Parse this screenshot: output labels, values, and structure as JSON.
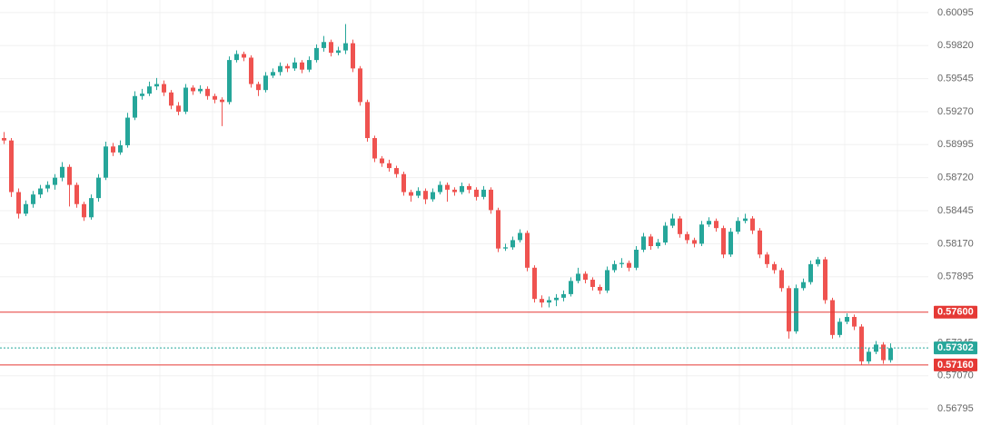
{
  "chart_data": {
    "type": "candlestick",
    "up_color": "#26a69a",
    "down_color": "#ef5350",
    "ylim": [
      0.5666,
      0.602
    ],
    "yticks": [
      0.60095,
      {
        "value": 0.5982,
        "label": "0.59820"
      },
      0.59545,
      {
        "value": 0.5927,
        "label": "0.59270"
      },
      0.58995,
      {
        "value": 0.5872,
        "label": "0.58720"
      },
      0.58445,
      {
        "value": 0.5817,
        "label": "0.58170"
      },
      0.57895,
      0.57345,
      {
        "value": 0.5707,
        "label": "0.57070"
      },
      0.56795
    ],
    "grid": true,
    "levels": [
      {
        "value": 0.576,
        "label": "0.57600",
        "color": "#e53935",
        "dashed": false
      },
      {
        "value": 0.5716,
        "label": "0.57160",
        "color": "#e53935",
        "dashed": false
      },
      {
        "value": 0.57302,
        "color": "#26a69a",
        "dashed": true
      }
    ],
    "candles": [
      [
        0.5905,
        0.591,
        0.59,
        0.5903
      ],
      [
        0.5903,
        0.5905,
        0.5856,
        0.586
      ],
      [
        0.586,
        0.5863,
        0.5838,
        0.5842
      ],
      [
        0.5842,
        0.5853,
        0.584,
        0.585
      ],
      [
        0.585,
        0.5861,
        0.5847,
        0.5858
      ],
      [
        0.5858,
        0.5866,
        0.5855,
        0.5863
      ],
      [
        0.5863,
        0.5869,
        0.586,
        0.5866
      ],
      [
        0.5866,
        0.5875,
        0.5862,
        0.5872
      ],
      [
        0.5872,
        0.5885,
        0.5869,
        0.5881
      ],
      [
        0.5881,
        0.5883,
        0.5848,
        0.5866
      ],
      [
        0.5866,
        0.5868,
        0.5847,
        0.585
      ],
      [
        0.585,
        0.5852,
        0.5836,
        0.5839
      ],
      [
        0.5839,
        0.5858,
        0.5837,
        0.5855
      ],
      [
        0.5855,
        0.5875,
        0.5852,
        0.5872
      ],
      [
        0.5872,
        0.5902,
        0.587,
        0.5898
      ],
      [
        0.5898,
        0.5901,
        0.589,
        0.5893
      ],
      [
        0.5893,
        0.5903,
        0.5891,
        0.5899
      ],
      [
        0.5899,
        0.5926,
        0.5897,
        0.5922
      ],
      [
        0.5922,
        0.5944,
        0.592,
        0.594
      ],
      [
        0.594,
        0.5946,
        0.5937,
        0.5942
      ],
      [
        0.5942,
        0.5952,
        0.594,
        0.5948
      ],
      [
        0.5948,
        0.5955,
        0.5945,
        0.595
      ],
      [
        0.595,
        0.5953,
        0.594,
        0.5943
      ],
      [
        0.5943,
        0.5945,
        0.5929,
        0.5932
      ],
      [
        0.5932,
        0.5935,
        0.5924,
        0.5927
      ],
      [
        0.5927,
        0.595,
        0.5925,
        0.5947
      ],
      [
        0.5947,
        0.5949,
        0.5941,
        0.5944
      ],
      [
        0.5944,
        0.5949,
        0.5942,
        0.5946
      ],
      [
        0.5946,
        0.5948,
        0.5937,
        0.594
      ],
      [
        0.594,
        0.5942,
        0.5934,
        0.5937
      ],
      [
        0.5937,
        0.5939,
        0.5915,
        0.5935
      ],
      [
        0.5935,
        0.5973,
        0.5933,
        0.597
      ],
      [
        0.597,
        0.5978,
        0.5968,
        0.5975
      ],
      [
        0.5975,
        0.5977,
        0.5969,
        0.5972
      ],
      [
        0.5972,
        0.5974,
        0.5947,
        0.595
      ],
      [
        0.595,
        0.5952,
        0.594,
        0.5945
      ],
      [
        0.5945,
        0.596,
        0.5943,
        0.5957
      ],
      [
        0.5957,
        0.5963,
        0.5955,
        0.596
      ],
      [
        0.596,
        0.5968,
        0.5957,
        0.5965
      ],
      [
        0.5965,
        0.5967,
        0.596,
        0.5963
      ],
      [
        0.5963,
        0.5972,
        0.5961,
        0.5968
      ],
      [
        0.5968,
        0.597,
        0.5959,
        0.5962
      ],
      [
        0.5962,
        0.5973,
        0.596,
        0.597
      ],
      [
        0.597,
        0.5983,
        0.5968,
        0.598
      ],
      [
        0.598,
        0.599,
        0.5977,
        0.5985
      ],
      [
        0.5985,
        0.5987,
        0.5973,
        0.5976
      ],
      [
        0.5976,
        0.5981,
        0.5974,
        0.5978
      ],
      [
        0.5978,
        0.6,
        0.5975,
        0.5984
      ],
      [
        0.5984,
        0.5987,
        0.596,
        0.5963
      ],
      [
        0.5963,
        0.5965,
        0.5932,
        0.5935
      ],
      [
        0.5935,
        0.5937,
        0.5902,
        0.5905
      ],
      [
        0.5905,
        0.5907,
        0.5885,
        0.5888
      ],
      [
        0.5888,
        0.589,
        0.5881,
        0.5884
      ],
      [
        0.5884,
        0.5887,
        0.5877,
        0.588
      ],
      [
        0.588,
        0.5882,
        0.5872,
        0.5875
      ],
      [
        0.5875,
        0.5877,
        0.5857,
        0.586
      ],
      [
        0.586,
        0.5862,
        0.5852,
        0.5857
      ],
      [
        0.5857,
        0.5864,
        0.5855,
        0.5861
      ],
      [
        0.5861,
        0.5863,
        0.585,
        0.5854
      ],
      [
        0.5854,
        0.5863,
        0.5852,
        0.586
      ],
      [
        0.586,
        0.5869,
        0.5858,
        0.5866
      ],
      [
        0.5866,
        0.5868,
        0.5852,
        0.5862
      ],
      [
        0.5862,
        0.5864,
        0.5857,
        0.586
      ],
      [
        0.586,
        0.5868,
        0.5858,
        0.5865
      ],
      [
        0.5865,
        0.5867,
        0.5859,
        0.5862
      ],
      [
        0.5862,
        0.5864,
        0.5853,
        0.5856
      ],
      [
        0.5856,
        0.5865,
        0.5854,
        0.5862
      ],
      [
        0.5862,
        0.5864,
        0.5842,
        0.5845
      ],
      [
        0.5845,
        0.5847,
        0.581,
        0.5813
      ],
      [
        0.5813,
        0.5817,
        0.5811,
        0.5814
      ],
      [
        0.5814,
        0.5823,
        0.5812,
        0.582
      ],
      [
        0.582,
        0.5829,
        0.5818,
        0.5826
      ],
      [
        0.5826,
        0.5828,
        0.5794,
        0.5797
      ],
      [
        0.5797,
        0.5799,
        0.5768,
        0.5771
      ],
      [
        0.5771,
        0.5774,
        0.5764,
        0.5768
      ],
      [
        0.5768,
        0.5773,
        0.5764,
        0.577
      ],
      [
        0.577,
        0.5775,
        0.5765,
        0.5772
      ],
      [
        0.5772,
        0.5778,
        0.5769,
        0.5775
      ],
      [
        0.5775,
        0.5789,
        0.5773,
        0.5786
      ],
      [
        0.5786,
        0.5797,
        0.5784,
        0.5792
      ],
      [
        0.5792,
        0.5794,
        0.5784,
        0.5787
      ],
      [
        0.5787,
        0.5789,
        0.5778,
        0.5781
      ],
      [
        0.5781,
        0.5783,
        0.5775,
        0.5778
      ],
      [
        0.5778,
        0.5798,
        0.5776,
        0.5795
      ],
      [
        0.5795,
        0.5803,
        0.5793,
        0.58
      ],
      [
        0.58,
        0.5805,
        0.5797,
        0.5801
      ],
      [
        0.5801,
        0.5803,
        0.5794,
        0.5797
      ],
      [
        0.5797,
        0.5815,
        0.5795,
        0.5812
      ],
      [
        0.5812,
        0.5826,
        0.581,
        0.5823
      ],
      [
        0.5823,
        0.5825,
        0.5812,
        0.5815
      ],
      [
        0.5815,
        0.5821,
        0.5813,
        0.5818
      ],
      [
        0.5818,
        0.5835,
        0.5816,
        0.5832
      ],
      [
        0.5832,
        0.5842,
        0.583,
        0.5838
      ],
      [
        0.5838,
        0.584,
        0.5822,
        0.5825
      ],
      [
        0.5825,
        0.5827,
        0.5817,
        0.582
      ],
      [
        0.582,
        0.5822,
        0.5814,
        0.5817
      ],
      [
        0.5817,
        0.5836,
        0.5815,
        0.5833
      ],
      [
        0.5833,
        0.5839,
        0.5831,
        0.5836
      ],
      [
        0.5836,
        0.5838,
        0.5827,
        0.583
      ],
      [
        0.583,
        0.5832,
        0.5805,
        0.5808
      ],
      [
        0.5808,
        0.583,
        0.5806,
        0.5827
      ],
      [
        0.5827,
        0.5839,
        0.5825,
        0.5836
      ],
      [
        0.5836,
        0.5842,
        0.5834,
        0.5838
      ],
      [
        0.5838,
        0.584,
        0.5825,
        0.5828
      ],
      [
        0.5828,
        0.583,
        0.5805,
        0.5808
      ],
      [
        0.5808,
        0.581,
        0.5797,
        0.58
      ],
      [
        0.58,
        0.5802,
        0.5792,
        0.5795
      ],
      [
        0.5795,
        0.5797,
        0.5777,
        0.578
      ],
      [
        0.578,
        0.5782,
        0.5738,
        0.5744
      ],
      [
        0.5744,
        0.5783,
        0.5742,
        0.578
      ],
      [
        0.578,
        0.5788,
        0.5778,
        0.5785
      ],
      [
        0.5785,
        0.5803,
        0.5783,
        0.58
      ],
      [
        0.58,
        0.5806,
        0.5798,
        0.5804
      ],
      [
        0.5804,
        0.5806,
        0.5767,
        0.577
      ],
      [
        0.577,
        0.5772,
        0.5738,
        0.5741
      ],
      [
        0.5741,
        0.5755,
        0.5739,
        0.5752
      ],
      [
        0.5752,
        0.5759,
        0.575,
        0.5756
      ],
      [
        0.5756,
        0.5758,
        0.5745,
        0.5748
      ],
      [
        0.5748,
        0.575,
        0.5716,
        0.5719
      ],
      [
        0.5719,
        0.573,
        0.5717,
        0.5727
      ],
      [
        0.5727,
        0.5736,
        0.5725,
        0.5733
      ],
      [
        0.5733,
        0.5735,
        0.5717,
        0.572
      ],
      [
        0.572,
        0.5734,
        0.5718,
        0.573
      ]
    ]
  }
}
